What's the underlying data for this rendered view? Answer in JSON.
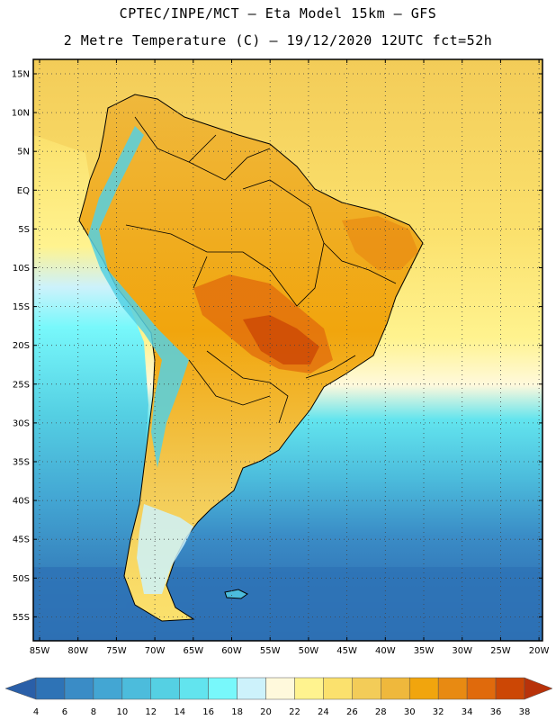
{
  "header": {
    "line1": "CPTEC/INPE/MCT –  Eta Model 15km – GFS",
    "line2": "2 Metre Temperature (C) – 19/12/2020 12UTC fct=52h"
  },
  "map": {
    "lat_labels": [
      "15N",
      "10N",
      "5N",
      "EQ",
      "5S",
      "10S",
      "15S",
      "20S",
      "25S",
      "30S",
      "35S",
      "40S",
      "45S",
      "50S",
      "55S"
    ],
    "lon_labels": [
      "85W",
      "80W",
      "75W",
      "70W",
      "65W",
      "60W",
      "55W",
      "50W",
      "45W",
      "40W",
      "35W",
      "30W",
      "25W",
      "20W"
    ]
  },
  "colorbar": {
    "labels": [
      "4",
      "6",
      "8",
      "10",
      "12",
      "14",
      "16",
      "18",
      "20",
      "22",
      "24",
      "26",
      "28",
      "30",
      "32",
      "34",
      "36",
      "38"
    ],
    "colors": [
      "#2a5fa8",
      "#2e73b6",
      "#3a8cc6",
      "#43a6d3",
      "#4cbcdc",
      "#55d0e3",
      "#62e4ee",
      "#78f8fb",
      "#cdf2fb",
      "#fff9dc",
      "#fff38f",
      "#fbe16d",
      "#f3cc58",
      "#efb83c",
      "#f1a50d",
      "#e88a12",
      "#e06a0c",
      "#cc4705",
      "#b8320a"
    ]
  }
}
